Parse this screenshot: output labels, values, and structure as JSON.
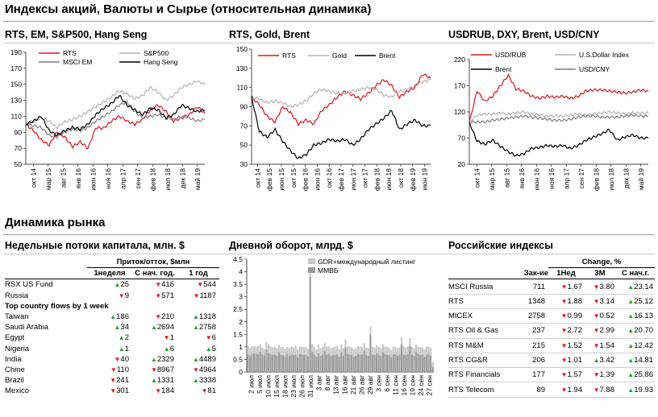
{
  "section1_title": "Индексы акций, Валюты и  Сырье (относительная динамика)",
  "section2_title": "Динамика рынка",
  "colors": {
    "red": "#e0151b",
    "grey": "#b3b3b3",
    "darkgrey": "#7f7f7f",
    "black": "#000000",
    "green": "#21a038",
    "bar_light": "#c8c8c8",
    "bar_dark": "#9a9a9a"
  },
  "chart_data": [
    {
      "type": "line",
      "title": "RTS, EM, S&P500, Hang Seng",
      "ylim": [
        50,
        190
      ],
      "yticks": [
        50,
        70,
        90,
        110,
        130,
        150,
        170,
        190
      ],
      "xticks": [
        "окт 14",
        "мар 15",
        "авг 15",
        "янв 16",
        "июн 16",
        "ноя 16",
        "апр 17",
        "сен 17",
        "фев 18",
        "июл 18",
        "дек 18",
        "май 19"
      ],
      "series": [
        {
          "name": "RTS",
          "color": "#e0151b",
          "values": [
            100,
            92,
            80,
            74,
            90,
            84,
            72,
            78,
            70,
            96,
            95,
            104,
            110,
            104,
            100,
            106,
            118,
            124,
            116,
            104,
            108,
            112,
            122,
            114
          ]
        },
        {
          "name": "S&P500",
          "color": "#b3b3b3",
          "values": [
            100,
            104,
            108,
            104,
            96,
            103,
            106,
            110,
            116,
            122,
            128,
            134,
            142,
            138,
            132,
            136,
            146,
            140,
            130,
            136,
            146,
            150,
            154,
            150
          ]
        },
        {
          "name": "MSCI EM",
          "color": "#7f7f7f",
          "values": [
            100,
            98,
            96,
            86,
            84,
            90,
            94,
            92,
            96,
            104,
            110,
            116,
            124,
            128,
            116,
            108,
            110,
            112,
            108,
            106,
            110,
            108,
            104,
            106
          ]
        },
        {
          "name": "Hang Seng",
          "color": "#000000",
          "values": [
            100,
            104,
            110,
            92,
            86,
            92,
            96,
            94,
            100,
            112,
            120,
            126,
            136,
            124,
            118,
            112,
            120,
            118,
            108,
            112,
            124,
            120,
            116,
            118
          ]
        }
      ]
    },
    {
      "type": "line",
      "title": "RTS, Gold, Brent",
      "ylim": [
        30,
        150
      ],
      "yticks": [
        30,
        50,
        70,
        90,
        110,
        130,
        150
      ],
      "xticks": [
        "окт 14",
        "фев 15",
        "июн 15",
        "окт 15",
        "фев 16",
        "июн 16",
        "окт 16",
        "фев 17",
        "июн 17",
        "окт 17",
        "фев 18",
        "июн 18",
        "окт 18",
        "фев 19",
        "июн 19"
      ],
      "series": [
        {
          "name": "RTS",
          "color": "#e0151b",
          "values": [
            100,
            92,
            80,
            74,
            90,
            84,
            72,
            76,
            72,
            86,
            92,
            100,
            106,
            102,
            98,
            104,
            112,
            118,
            112,
            100,
            106,
            110,
            124,
            120
          ]
        },
        {
          "name": "Gold",
          "color": "#b3b3b3",
          "values": [
            100,
            98,
            94,
            96,
            94,
            90,
            92,
            96,
            104,
            108,
            106,
            104,
            104,
            106,
            108,
            110,
            108,
            102,
            100,
            106,
            108,
            112,
            116,
            118
          ]
        },
        {
          "name": "Brent",
          "color": "#000000",
          "values": [
            100,
            64,
            58,
            66,
            54,
            44,
            36,
            40,
            50,
            52,
            56,
            54,
            56,
            50,
            56,
            66,
            72,
            78,
            86,
            66,
            72,
            76,
            70,
            70
          ]
        }
      ]
    },
    {
      "type": "line",
      "title": "USDRUB, DXY, Brent, USD/CNY",
      "ylim": [
        20,
        220
      ],
      "yticks": [
        20,
        70,
        120,
        170,
        220
      ],
      "xticks": [
        "окт 14",
        "мар 15",
        "авг 15",
        "янв 16",
        "июн 16",
        "ноя 16",
        "апр 17",
        "сен 17",
        "фев 18",
        "июл 18",
        "дек 18",
        "май 19"
      ],
      "series": [
        {
          "name": "USD/RUB",
          "color": "#e0151b",
          "values": [
            100,
            160,
            140,
            150,
            170,
            190,
            164,
            160,
            150,
            146,
            150,
            148,
            150,
            146,
            150,
            160,
            162,
            162,
            160,
            158,
            156,
            158,
            162,
            160
          ]
        },
        {
          "name": "U.S.Dollar Index",
          "color": "#b3b3b3",
          "values": [
            100,
            114,
            116,
            116,
            118,
            116,
            118,
            120,
            116,
            114,
            112,
            112,
            112,
            114,
            116,
            114,
            116,
            118,
            120,
            118,
            116,
            118,
            118,
            118
          ]
        },
        {
          "name": "Brent",
          "color": "#000000",
          "values": [
            100,
            64,
            58,
            66,
            54,
            44,
            36,
            40,
            50,
            52,
            56,
            54,
            56,
            50,
            56,
            66,
            72,
            78,
            86,
            66,
            72,
            76,
            70,
            70
          ]
        },
        {
          "name": "USD/CNY",
          "color": "#7f7f7f",
          "values": [
            100,
            101,
            101,
            104,
            106,
            108,
            110,
            112,
            110,
            108,
            106,
            104,
            104,
            106,
            110,
            112,
            112,
            110,
            110,
            110,
            112,
            114,
            112,
            112
          ]
        }
      ]
    },
    {
      "type": "bar",
      "title": "Дневной оборот, млрд. $",
      "ylim": [
        0,
        4.5
      ],
      "yticks": [
        0,
        0.5,
        1,
        1.5,
        2,
        2.5,
        3,
        3.5,
        4,
        4.5
      ],
      "xticks": [
        "2 июл",
        "5 июл",
        "10 июл",
        "15 июл",
        "18 июл",
        "23 июл",
        "26 июл",
        "31 июл",
        "3 авг",
        "8 авг",
        "13 авг",
        "16 авг",
        "21 авг",
        "26 авг",
        "29 авг",
        "3 сен",
        "6 сен",
        "11 сен",
        "16 сен",
        "19 сен",
        "24 сен",
        "27 сен"
      ],
      "series": [
        {
          "name": "GDR+международный  листинг",
          "color": "#c8c8c8",
          "values": [
            0.35,
            0.3,
            0.32,
            0.28,
            0.3,
            0.33,
            0.3,
            0.27,
            0.25,
            0.3,
            0.35,
            0.3,
            0.3,
            0.32,
            0.3,
            0.28,
            0.3,
            0.33,
            0.3,
            0.28,
            0.3,
            0.32,
            0.3,
            0.35,
            0.3,
            0.3,
            0.3,
            0.32,
            0.3,
            0.3,
            0.28,
            0.3,
            0.3,
            0.3,
            0.35,
            0.3,
            0.3,
            0.3,
            0.32,
            0.3,
            0.3,
            0.3,
            0.3,
            0.32,
            0.3,
            0.3,
            0.3,
            0.3,
            0.3,
            0.32,
            0.3,
            0.3,
            0.3,
            0.3,
            0.32,
            0.3,
            0.3,
            0.3,
            0.3,
            0.3,
            0.3,
            0.3,
            0.32,
            0.3,
            0.3,
            0.3,
            0.3,
            0.3,
            0.3,
            0.28,
            0.3,
            0.3,
            0.3,
            0.3,
            0.3,
            0.32,
            0.3,
            0.3,
            0.3,
            0.3,
            0.3,
            0.3,
            0.28,
            0.3,
            0.3,
            0.3,
            0.3,
            0.3,
            0.3,
            0.2
          ]
        },
        {
          "name": "ММВБ",
          "color": "#9a9a9a",
          "values": [
            0.7,
            0.65,
            0.7,
            0.75,
            0.72,
            0.7,
            0.8,
            0.7,
            0.65,
            0.9,
            0.75,
            0.72,
            0.68,
            0.7,
            0.65,
            0.8,
            0.7,
            0.66,
            0.6,
            0.72,
            0.65,
            0.7,
            0.68,
            0.7,
            0.6,
            0.72,
            0.7,
            0.68,
            0.7,
            0.62,
            3.8,
            0.8,
            0.7,
            0.6,
            0.75,
            0.65,
            0.7,
            0.85,
            0.7,
            0.72,
            0.65,
            0.68,
            0.7,
            0.72,
            0.6,
            0.8,
            0.65,
            1.0,
            0.72,
            0.7,
            0.68,
            0.6,
            0.65,
            0.72,
            0.7,
            0.7,
            0.85,
            0.68,
            0.65,
            1.5,
            0.7,
            0.68,
            0.75,
            0.7,
            0.65,
            0.8,
            0.72,
            0.7,
            0.68,
            0.6,
            0.7,
            0.72,
            0.65,
            0.7,
            1.1,
            0.7,
            0.68,
            0.72,
            1.05,
            0.7,
            0.65,
            0.8,
            0.72,
            0.68,
            0.7,
            0.6,
            0.7,
            0.72,
            0.65,
            0.2
          ]
        }
      ]
    }
  ],
  "flows": {
    "title": "Недельные потоки капитала, млн. $",
    "header": "Приток/отток, $млн",
    "cols": [
      "1неделя",
      "С нач. гoд.",
      "1 год"
    ],
    "rows1": [
      {
        "name": "RSX US Fund",
        "v": [
          "25",
          "416",
          "544"
        ],
        "d": [
          "up",
          "dn",
          "dn"
        ]
      },
      {
        "name": "Russia",
        "v": [
          "9",
          "571",
          "1187"
        ],
        "d": [
          "dn",
          "dn",
          "dn"
        ]
      }
    ],
    "subheader": "Top country flows by 1 week",
    "rows2": [
      {
        "name": "Taiwan",
        "v": [
          "186",
          "210",
          "1318"
        ],
        "d": [
          "up",
          "dn",
          "up"
        ]
      },
      {
        "name": "Saudi Arabia",
        "v": [
          "34",
          "2694",
          "2758"
        ],
        "d": [
          "up",
          "up",
          "up"
        ]
      },
      {
        "name": "Egypt",
        "v": [
          "2",
          "1",
          "6"
        ],
        "d": [
          "up",
          "dn",
          "dn"
        ]
      },
      {
        "name": "Nigeria",
        "v": [
          "1",
          "6",
          "5"
        ],
        "d": [
          "up",
          "up",
          "up"
        ]
      },
      {
        "name": "India",
        "v": [
          "40",
          "2329",
          "4489"
        ],
        "d": [
          "dn",
          "up",
          "up"
        ]
      },
      {
        "name": "Chine",
        "v": [
          "110",
          "8967",
          "4964"
        ],
        "d": [
          "dn",
          "dn",
          "dn"
        ]
      },
      {
        "name": "Brazil",
        "v": [
          "241",
          "1331",
          "3338"
        ],
        "d": [
          "dn",
          "up",
          "up"
        ]
      },
      {
        "name": "Mexico",
        "v": [
          "301",
          "184",
          "81"
        ],
        "d": [
          "dn",
          "dn",
          "dn"
        ]
      }
    ]
  },
  "indices": {
    "title": "Российские индексы",
    "header": "Change, %",
    "cols": [
      "Зак-ие",
      "1Нед",
      "3М",
      "С нач.г."
    ],
    "rows": [
      {
        "name": "MSCI Russia",
        "close": "711",
        "v": [
          "1.67",
          "3.80",
          "23.14"
        ],
        "d": [
          "dn",
          "dn",
          "up"
        ]
      },
      {
        "name": "RTS",
        "close": "1348",
        "v": [
          "1.88",
          "3.14",
          "25.12"
        ],
        "d": [
          "dn",
          "dn",
          "up"
        ]
      },
      {
        "name": "MICEX",
        "close": "2758",
        "v": [
          "0.99",
          "0.52",
          "16.13"
        ],
        "d": [
          "dn",
          "dn",
          "up"
        ]
      },
      {
        "name": "RTS Oil & Gas",
        "close": "237",
        "v": [
          "2.72",
          "2.99",
          "20.70"
        ],
        "d": [
          "dn",
          "dn",
          "up"
        ]
      },
      {
        "name": "RTS M&M",
        "close": "215",
        "v": [
          "1.52",
          "1.54",
          "12.42"
        ],
        "d": [
          "dn",
          "dn",
          "up"
        ]
      },
      {
        "name": "RTS CG&R",
        "close": "206",
        "v": [
          "1.01",
          "3.42",
          "14.81"
        ],
        "d": [
          "dn",
          "up",
          "up"
        ]
      },
      {
        "name": "RTS Financials",
        "close": "177",
        "v": [
          "1.57",
          "1.39",
          "25.86"
        ],
        "d": [
          "dn",
          "dn",
          "up"
        ]
      },
      {
        "name": "RTS Telecom",
        "close": "89",
        "v": [
          "1.94",
          "7.88",
          "19.93"
        ],
        "d": [
          "dn",
          "dn",
          "up"
        ]
      }
    ]
  }
}
